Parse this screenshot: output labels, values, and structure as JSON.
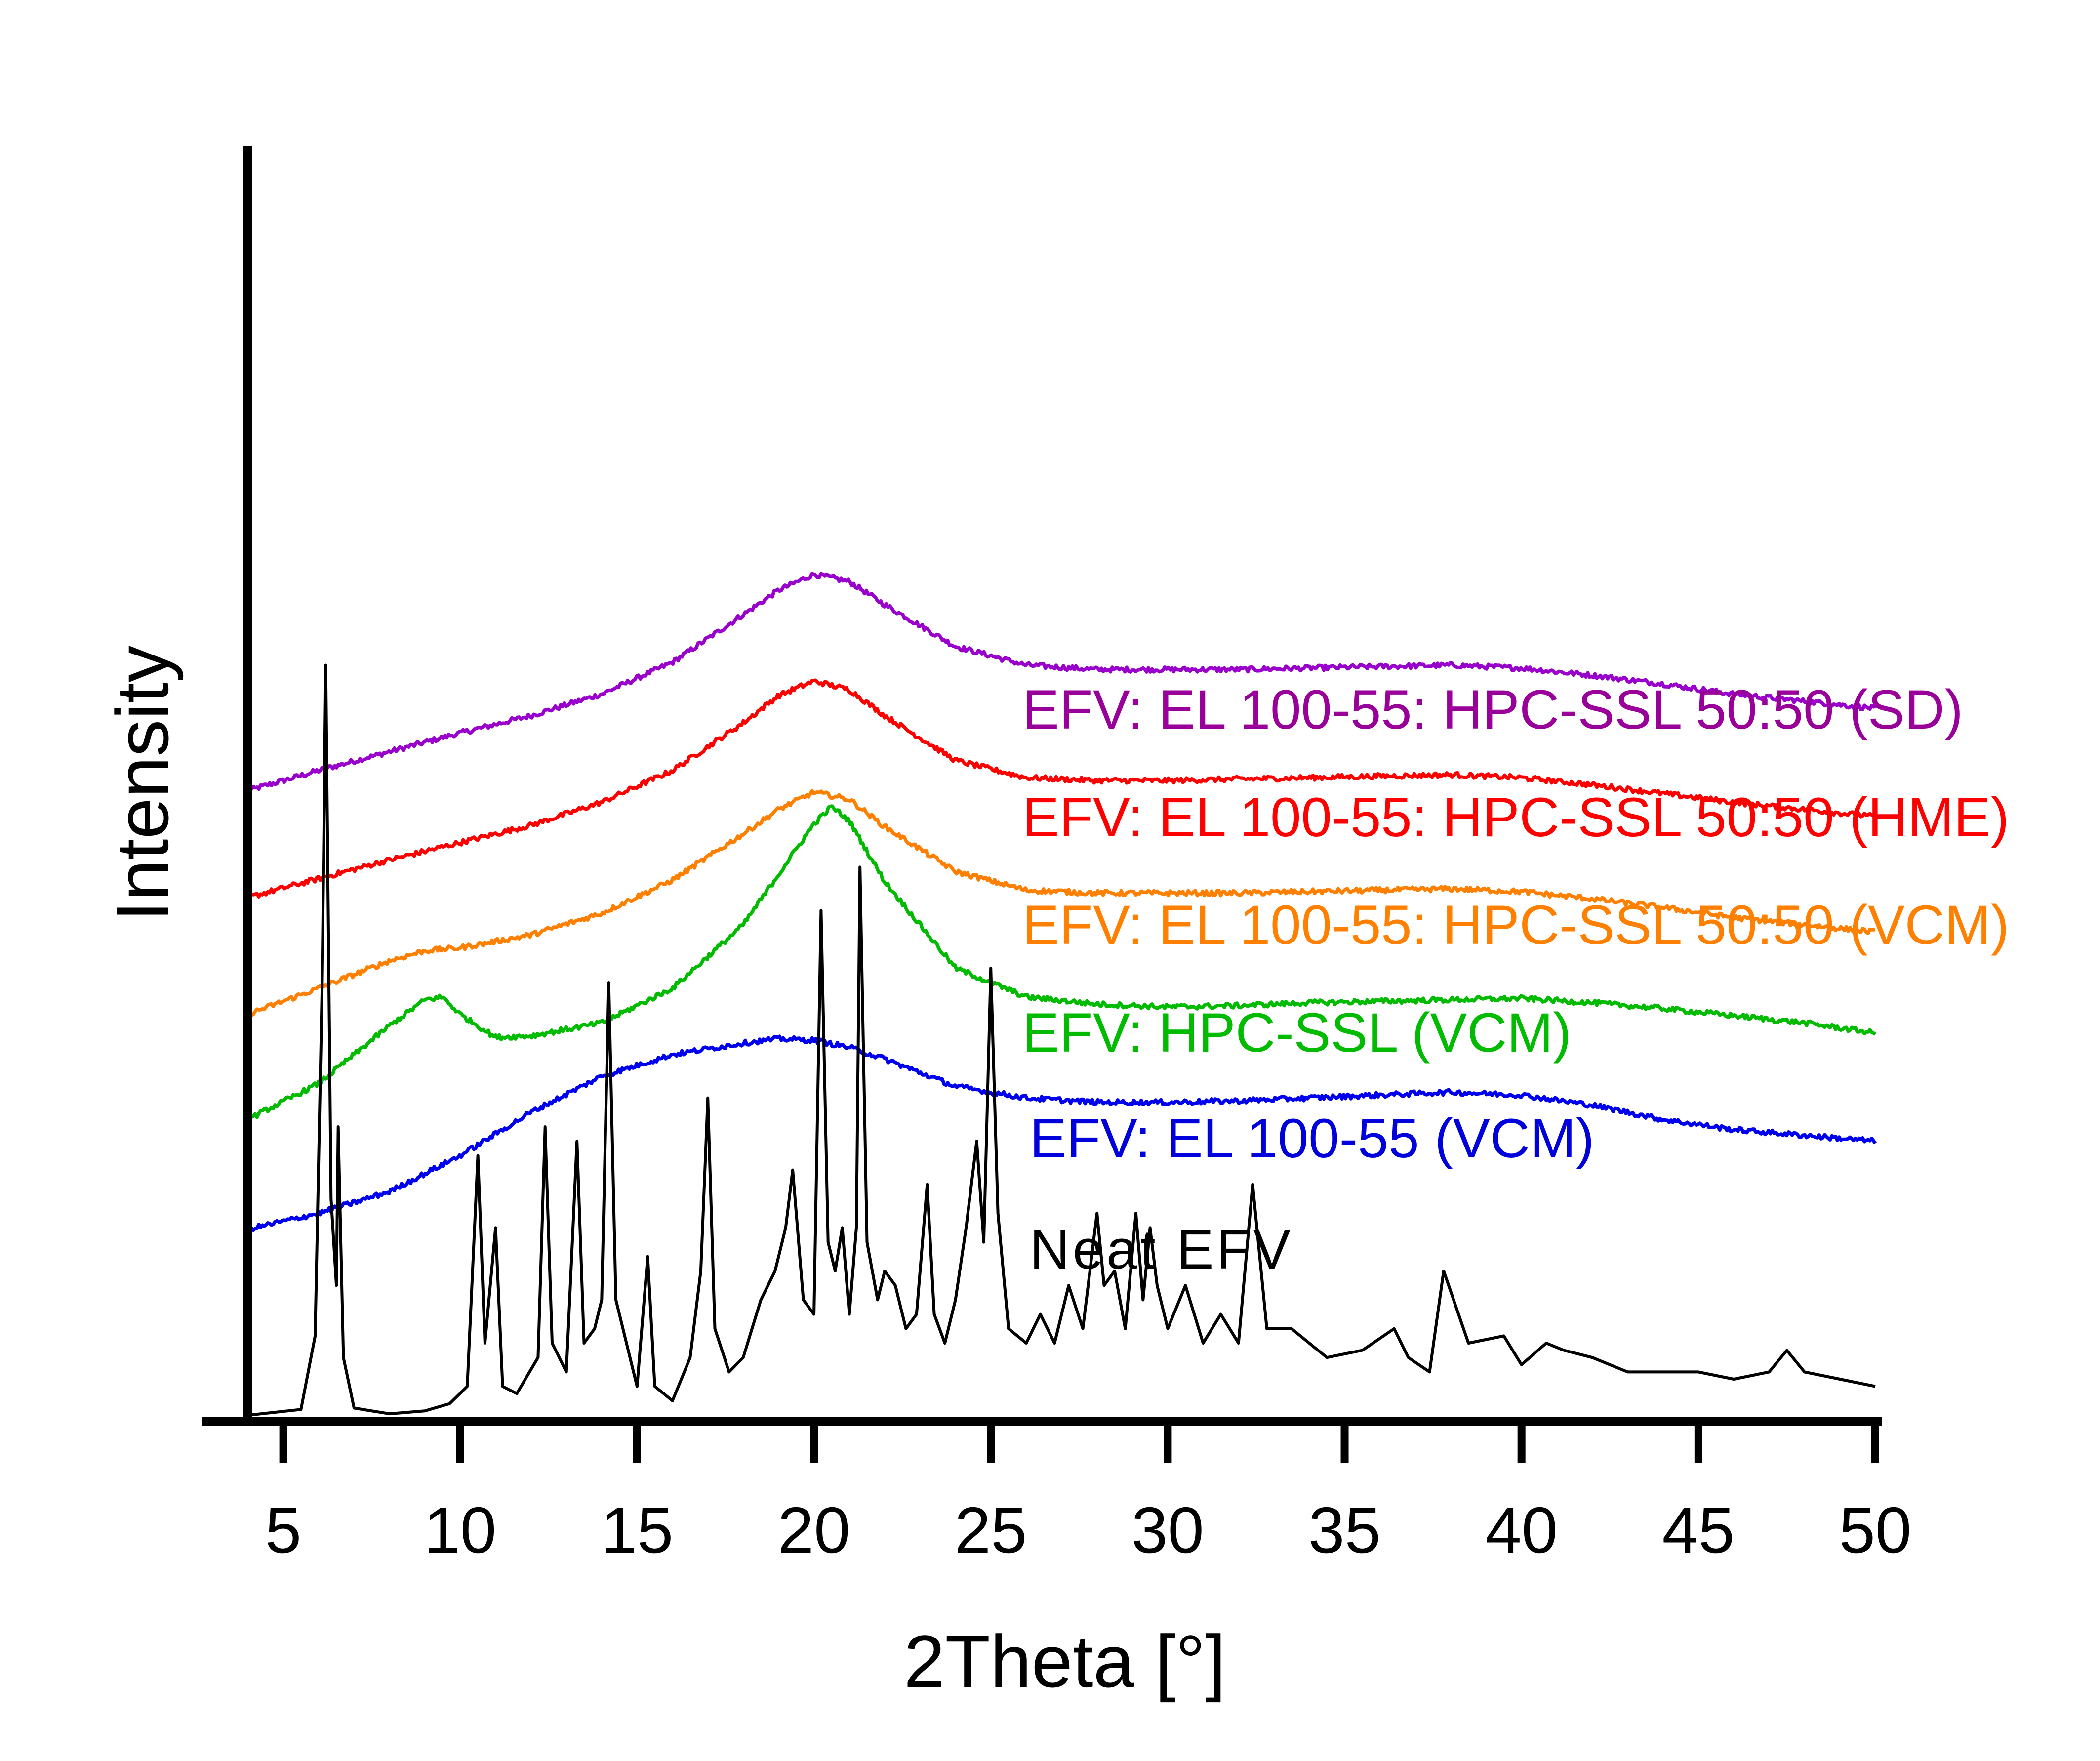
{
  "chart_data": {
    "type": "line",
    "xlabel": "2Theta [°]",
    "ylabel": "Intensity",
    "xlim": [
      4,
      50
    ],
    "x_ticks": [
      5,
      10,
      15,
      20,
      25,
      30,
      35,
      40,
      45,
      50
    ],
    "grid": false,
    "y_tick_labels_shown": false,
    "series": [
      {
        "name": "EFV: EL 100-55: HPC-SSL 50:50 (SD)",
        "color": "#9900cc",
        "x": [
          4,
          6,
          8,
          10,
          12,
          14,
          16,
          18,
          19,
          20,
          21,
          22,
          24,
          26,
          28,
          30,
          32,
          34,
          36,
          38,
          40,
          42,
          44,
          46,
          48,
          50
        ],
        "y": [
          4.33,
          4.47,
          4.6,
          4.73,
          4.85,
          5.0,
          5.22,
          5.55,
          5.72,
          5.83,
          5.78,
          5.62,
          5.33,
          5.2,
          5.17,
          5.17,
          5.17,
          5.18,
          5.19,
          5.2,
          5.18,
          5.13,
          5.07,
          5.0,
          4.95,
          4.9
        ]
      },
      {
        "name": "EFV: EL 100-55: HPC-SSL 50:50 (HME)",
        "color": "#ff0000",
        "x": [
          4,
          6,
          8,
          10,
          12,
          14,
          16,
          18,
          19,
          20,
          21,
          22,
          24,
          26,
          28,
          30,
          32,
          34,
          36,
          38,
          40,
          42,
          44,
          46,
          48,
          50
        ],
        "y": [
          3.59,
          3.72,
          3.85,
          3.97,
          4.09,
          4.25,
          4.47,
          4.8,
          4.99,
          5.09,
          5.03,
          4.85,
          4.54,
          4.42,
          4.4,
          4.4,
          4.41,
          4.42,
          4.43,
          4.44,
          4.42,
          4.37,
          4.31,
          4.25,
          4.2,
          4.15
        ]
      },
      {
        "name": "EFV: EL 100-55: HPC-SSL 50:50 (VCM)",
        "color": "#ff8000",
        "x": [
          4,
          6,
          8,
          9,
          10,
          12,
          14,
          16,
          18,
          19,
          20,
          21,
          22,
          24,
          26,
          28,
          30,
          32,
          34,
          36,
          38,
          40,
          42,
          44,
          46,
          48,
          50
        ],
        "y": [
          2.78,
          2.96,
          3.15,
          3.22,
          3.24,
          3.33,
          3.48,
          3.71,
          4.03,
          4.2,
          4.32,
          4.27,
          4.08,
          3.77,
          3.64,
          3.62,
          3.62,
          3.62,
          3.63,
          3.64,
          3.65,
          3.63,
          3.58,
          3.52,
          3.45,
          3.4,
          3.35
        ]
      },
      {
        "name": "EFV: HPC-SSL (VCM)",
        "color": "#00bb00",
        "x": [
          4,
          6,
          8,
          9,
          9.5,
          10,
          11,
          12,
          14,
          16,
          18,
          19,
          20,
          20.5,
          21,
          22,
          24,
          26,
          28,
          30,
          32,
          34,
          36,
          38,
          40,
          42,
          44,
          46,
          48,
          50
        ],
        "y": [
          2.05,
          2.3,
          2.7,
          2.88,
          2.9,
          2.78,
          2.62,
          2.63,
          2.72,
          2.96,
          3.4,
          3.75,
          4.1,
          4.22,
          4.12,
          3.7,
          3.1,
          2.9,
          2.85,
          2.83,
          2.84,
          2.86,
          2.87,
          2.88,
          2.89,
          2.86,
          2.82,
          2.77,
          2.72,
          2.65
        ]
      },
      {
        "name": "EFV: EL 100-55 (VCM)",
        "color": "#0000ee",
        "x": [
          4,
          6,
          8,
          10,
          12,
          14,
          16,
          18,
          19,
          20,
          21,
          22,
          24,
          26,
          28,
          30,
          32,
          34,
          36,
          38,
          40,
          42,
          44,
          46,
          48,
          50
        ],
        "y": [
          1.29,
          1.4,
          1.55,
          1.8,
          2.1,
          2.35,
          2.5,
          2.58,
          2.61,
          2.6,
          2.55,
          2.47,
          2.28,
          2.2,
          2.17,
          2.17,
          2.18,
          2.2,
          2.22,
          2.24,
          2.22,
          2.15,
          2.05,
          1.98,
          1.94,
          1.9
        ]
      },
      {
        "name": "Neat EFV",
        "color": "#000000",
        "x": [
          4.0,
          5.5,
          5.9,
          6.1,
          6.2,
          6.35,
          6.5,
          6.55,
          6.7,
          7.0,
          8.0,
          9.0,
          9.7,
          10.2,
          10.5,
          10.7,
          11.0,
          11.2,
          11.6,
          12.2,
          12.4,
          12.6,
          13.0,
          13.3,
          13.5,
          13.8,
          14.0,
          14.2,
          14.4,
          15.0,
          15.3,
          15.5,
          16.0,
          16.5,
          16.8,
          17.0,
          17.2,
          17.6,
          18.0,
          18.5,
          18.9,
          19.2,
          19.4,
          19.7,
          20.0,
          20.2,
          20.4,
          20.6,
          20.8,
          21.0,
          21.2,
          21.3,
          21.5,
          21.8,
          22.0,
          22.3,
          22.6,
          22.9,
          23.2,
          23.4,
          23.7,
          24.0,
          24.3,
          24.6,
          24.8,
          25.0,
          25.2,
          25.5,
          26.0,
          26.4,
          26.8,
          27.2,
          27.6,
          28.0,
          28.2,
          28.5,
          28.8,
          29.1,
          29.3,
          29.5,
          29.7,
          30.0,
          30.5,
          31.0,
          31.5,
          32.0,
          32.4,
          32.8,
          33.5,
          34.5,
          35.5,
          36.4,
          36.8,
          37.4,
          37.8,
          38.5,
          39.5,
          40.0,
          40.7,
          41.2,
          42.0,
          43.0,
          44.0,
          45.0,
          46.0,
          47.0,
          47.5,
          48.0,
          49.0,
          50.0
        ],
        "y": [
          0.0,
          0.04,
          0.55,
          3.0,
          5.2,
          1.5,
          0.9,
          2.0,
          0.4,
          0.05,
          0.01,
          0.03,
          0.08,
          0.2,
          1.8,
          0.5,
          1.3,
          0.2,
          0.15,
          0.4,
          2.0,
          0.5,
          0.3,
          1.9,
          0.5,
          0.6,
          0.8,
          3.0,
          0.8,
          0.2,
          1.1,
          0.2,
          0.1,
          0.4,
          1.0,
          2.2,
          0.6,
          0.3,
          0.4,
          0.8,
          1.0,
          1.3,
          1.7,
          0.8,
          0.7,
          3.5,
          1.2,
          1.0,
          1.3,
          0.7,
          1.3,
          3.8,
          1.2,
          0.8,
          1.0,
          0.9,
          0.6,
          0.7,
          1.6,
          0.7,
          0.5,
          0.8,
          1.3,
          1.9,
          1.2,
          3.1,
          1.4,
          0.6,
          0.5,
          0.7,
          0.5,
          0.9,
          0.6,
          1.4,
          0.9,
          1.0,
          0.6,
          1.4,
          0.8,
          1.3,
          0.9,
          0.6,
          0.9,
          0.5,
          0.7,
          0.5,
          1.6,
          0.6,
          0.6,
          0.4,
          0.45,
          0.6,
          0.4,
          0.3,
          1.0,
          0.5,
          0.55,
          0.35,
          0.5,
          0.45,
          0.4,
          0.3,
          0.3,
          0.3,
          0.25,
          0.3,
          0.45,
          0.3,
          0.25,
          0.2
        ]
      }
    ],
    "legend": {
      "placement": "inside-right",
      "entries": [
        {
          "label": "EFV: EL 100-55: HPC-SSL 50:50 (SD)",
          "color": "#990099"
        },
        {
          "label": "EFV: EL 100-55: HPC-SSL 50:50 (HME)",
          "color": "#ff0000"
        },
        {
          "label": "EFV: EL 100-55: HPC-SSL 50:50 (VCM)",
          "color": "#ff8000"
        },
        {
          "label": "EFV: HPC-SSL (VCM)",
          "color": "#00bb00"
        },
        {
          "label": "EFV: EL 100-55 (VCM)",
          "color": "#0000dd"
        },
        {
          "label": "Neat EFV",
          "color": "#000000"
        }
      ]
    }
  }
}
